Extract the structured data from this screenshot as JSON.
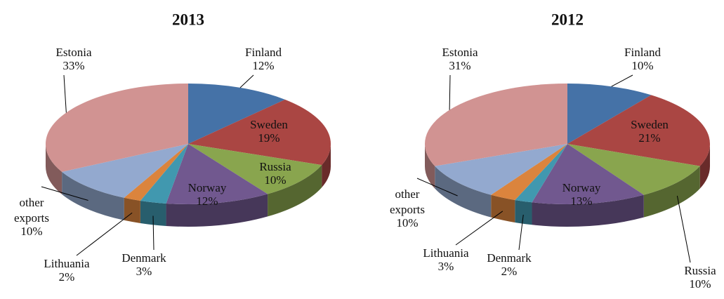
{
  "chart_data": [
    {
      "type": "pie",
      "title": "2013",
      "categories": [
        "Finland",
        "Sweden",
        "Russia",
        "Norway",
        "Denmark",
        "Lithuania",
        "other exports",
        "Estonia"
      ],
      "values": [
        12,
        19,
        10,
        12,
        3,
        2,
        10,
        33
      ],
      "value_labels": [
        "12%",
        "19%",
        "10%",
        "12%",
        "3%",
        "2%",
        "10%",
        "33%"
      ],
      "colors": [
        "#4572a7",
        "#aa4643",
        "#89a54e",
        "#71588f",
        "#4198af",
        "#db843d",
        "#93a9cf",
        "#d19392"
      ]
    },
    {
      "type": "pie",
      "title": "2012",
      "categories": [
        "Finland",
        "Sweden",
        "Russia",
        "Norway",
        "Denmark",
        "Lithuania",
        "other exports",
        "Estonia"
      ],
      "values": [
        10,
        21,
        10,
        13,
        2,
        3,
        10,
        31
      ],
      "value_labels": [
        "10%",
        "21%",
        "10%",
        "13%",
        "2%",
        "3%",
        "10%",
        "31%"
      ],
      "colors": [
        "#4572a7",
        "#aa4643",
        "#89a54e",
        "#71588f",
        "#4198af",
        "#db843d",
        "#93a9cf",
        "#d19392"
      ]
    }
  ]
}
